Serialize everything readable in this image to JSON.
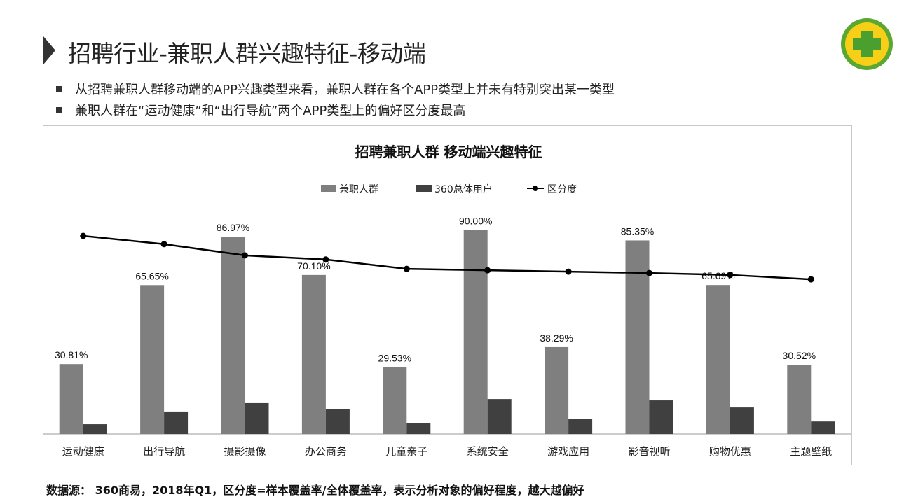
{
  "header": {
    "title": "招聘行业-兼职人群兴趣特征-移动端",
    "logo": "360-logo"
  },
  "bullets": [
    "从招聘兼职人群移动端的APP兴趣类型来看，兼职人群在各个APP类型上并未有特别突出某一类型",
    "兼职人群在“运动健康”和“出行导航”两个APP类型上的偏好区分度最高"
  ],
  "footer": "数据源： 360商易，2018年Q1，区分度=样本覆盖率/全体覆盖率，表示分析对象的偏好程度，越大越偏好",
  "chart_data": {
    "type": "bar",
    "title": "招聘兼职人群 移动端兴趣特征",
    "categories": [
      "运动健康",
      "出行导航",
      "摄影摄像",
      "办公商务",
      "儿童亲子",
      "系统安全",
      "游戏应用",
      "影音视听",
      "购物优惠",
      "主题壁纸"
    ],
    "series": [
      {
        "name": "兼职人群",
        "type": "bar",
        "color": "#7f7f7f",
        "values": [
          30.81,
          65.65,
          86.97,
          70.1,
          29.53,
          90.0,
          38.29,
          85.35,
          65.69,
          30.52
        ],
        "labels": [
          "30.81%",
          "65.65%",
          "86.97%",
          "70.10%",
          "29.53%",
          "90.00%",
          "38.29%",
          "85.35%",
          "65.69%",
          "30.52%"
        ]
      },
      {
        "name": "360总体用户",
        "type": "bar",
        "color": "#404040",
        "values": [
          4.3,
          9.9,
          13.6,
          11.1,
          4.9,
          15.4,
          6.5,
          14.8,
          11.7,
          5.5
        ]
      },
      {
        "name": "区分度",
        "type": "line",
        "axis": "secondary",
        "color": "#000000",
        "values": [
          7.2,
          6.9,
          6.49,
          6.34,
          6.0,
          5.95,
          5.9,
          5.85,
          5.78,
          5.62
        ]
      }
    ],
    "ylim": [
      0,
      100
    ],
    "y2lim": [
      0,
      12.3
    ],
    "legend": "top-center",
    "grid": false
  }
}
